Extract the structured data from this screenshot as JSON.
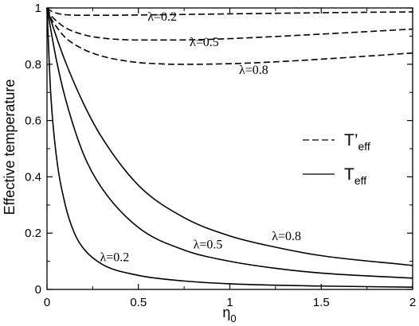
{
  "chart_data": {
    "type": "line",
    "xlabel": "η",
    "xlabel_subscript": "0",
    "ylabel": "Effective temperature",
    "xlim": [
      0,
      2
    ],
    "ylim": [
      0,
      1
    ],
    "xticks": [
      "0",
      "0.5",
      "1",
      "1.5",
      "2"
    ],
    "yticks": [
      "0",
      "0.2",
      "0.4",
      "0.6",
      "0.8",
      "1"
    ],
    "grid": false,
    "legend_position": "right",
    "legend": [
      {
        "main": "T’",
        "sub": "eff",
        "style": "dashed"
      },
      {
        "main": "T",
        "sub": "eff",
        "style": "solid"
      }
    ],
    "series": [
      {
        "label": "λ=0.2",
        "style": "dashed",
        "x": [
          0,
          0.02,
          0.05,
          0.1,
          0.2,
          0.3,
          0.5,
          1.0,
          1.5,
          2.0
        ],
        "y": [
          1.0,
          0.99,
          0.982,
          0.976,
          0.974,
          0.974,
          0.975,
          0.979,
          0.983,
          0.986
        ]
      },
      {
        "label": "λ=0.5",
        "style": "dashed",
        "x": [
          0,
          0.02,
          0.05,
          0.1,
          0.2,
          0.3,
          0.4,
          0.5,
          0.6,
          0.8,
          1.0,
          1.2,
          1.5,
          2.0
        ],
        "y": [
          1.0,
          0.975,
          0.955,
          0.93,
          0.905,
          0.893,
          0.888,
          0.886,
          0.886,
          0.887,
          0.891,
          0.897,
          0.907,
          0.925
        ]
      },
      {
        "label": "λ=0.8",
        "style": "dashed",
        "x": [
          0,
          0.02,
          0.05,
          0.1,
          0.2,
          0.3,
          0.4,
          0.5,
          0.6,
          0.7,
          0.8,
          1.0,
          1.2,
          1.5,
          2.0
        ],
        "y": [
          1.0,
          0.965,
          0.935,
          0.895,
          0.853,
          0.829,
          0.815,
          0.806,
          0.802,
          0.8,
          0.8,
          0.802,
          0.807,
          0.818,
          0.84
        ]
      },
      {
        "label": "λ=0.2",
        "style": "solid",
        "x": [
          0,
          0.02,
          0.05,
          0.1,
          0.15,
          0.2,
          0.3,
          0.5,
          0.75,
          1.0,
          1.5,
          2.0
        ],
        "y": [
          1.0,
          0.7,
          0.48,
          0.3,
          0.2,
          0.145,
          0.09,
          0.05,
          0.03,
          0.02,
          0.012,
          0.008
        ]
      },
      {
        "label": "λ=0.5",
        "style": "solid",
        "x": [
          0,
          0.05,
          0.1,
          0.2,
          0.3,
          0.5,
          0.75,
          1.0,
          1.25,
          1.5,
          2.0
        ],
        "y": [
          1.0,
          0.82,
          0.68,
          0.48,
          0.36,
          0.22,
          0.14,
          0.1,
          0.075,
          0.058,
          0.04
        ]
      },
      {
        "label": "λ=0.8",
        "style": "solid",
        "x": [
          0,
          0.05,
          0.1,
          0.2,
          0.3,
          0.5,
          0.75,
          1.0,
          1.25,
          1.5,
          2.0
        ],
        "y": [
          1.0,
          0.9,
          0.81,
          0.66,
          0.54,
          0.37,
          0.255,
          0.19,
          0.15,
          0.12,
          0.085
        ]
      }
    ],
    "annotations": [
      {
        "text": "λ=0.2",
        "x": 0.63,
        "y": 0.955
      },
      {
        "text": "λ=0.5",
        "x": 0.86,
        "y": 0.865
      },
      {
        "text": "λ=0.8",
        "x": 1.13,
        "y": 0.765
      },
      {
        "text": "λ=0.2",
        "x": 0.37,
        "y": 0.1
      },
      {
        "text": "λ=0.5",
        "x": 0.88,
        "y": 0.145
      },
      {
        "text": "λ=0.8",
        "x": 1.31,
        "y": 0.175
      }
    ]
  }
}
